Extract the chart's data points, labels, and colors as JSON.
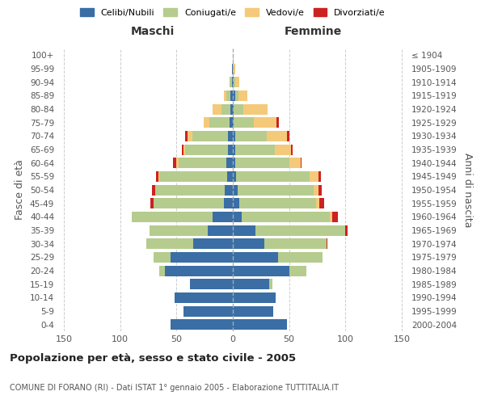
{
  "age_groups": [
    "0-4",
    "5-9",
    "10-14",
    "15-19",
    "20-24",
    "25-29",
    "30-34",
    "35-39",
    "40-44",
    "45-49",
    "50-54",
    "55-59",
    "60-64",
    "65-69",
    "70-74",
    "75-79",
    "80-84",
    "85-89",
    "90-94",
    "95-99",
    "100+"
  ],
  "birth_years": [
    "2000-2004",
    "1995-1999",
    "1990-1994",
    "1985-1989",
    "1980-1984",
    "1975-1979",
    "1970-1974",
    "1965-1969",
    "1960-1964",
    "1955-1959",
    "1950-1954",
    "1945-1949",
    "1940-1944",
    "1935-1939",
    "1930-1934",
    "1925-1929",
    "1920-1924",
    "1915-1919",
    "1910-1914",
    "1905-1909",
    "≤ 1904"
  ],
  "colors": {
    "celibi": "#3a6ea5",
    "coniugati": "#b5cc8e",
    "vedovi": "#f5c97a",
    "divorziati": "#cc2222"
  },
  "maschi": {
    "celibi": [
      55,
      44,
      52,
      38,
      60,
      55,
      35,
      22,
      18,
      8,
      7,
      5,
      6,
      4,
      4,
      3,
      2,
      2,
      1,
      1,
      0
    ],
    "coniugati": [
      0,
      0,
      0,
      0,
      5,
      15,
      42,
      52,
      72,
      62,
      62,
      60,
      42,
      38,
      32,
      18,
      8,
      4,
      2,
      0,
      0
    ],
    "vedovi": [
      0,
      0,
      0,
      0,
      0,
      0,
      0,
      0,
      0,
      0,
      0,
      1,
      2,
      2,
      4,
      5,
      8,
      2,
      0,
      0,
      0
    ],
    "divorziati": [
      0,
      0,
      0,
      0,
      0,
      0,
      0,
      0,
      0,
      3,
      3,
      2,
      3,
      1,
      2,
      0,
      0,
      0,
      0,
      0,
      0
    ]
  },
  "femmine": {
    "celibi": [
      48,
      36,
      38,
      32,
      50,
      40,
      28,
      20,
      8,
      6,
      4,
      3,
      2,
      2,
      2,
      1,
      1,
      2,
      1,
      0,
      0
    ],
    "coniugati": [
      0,
      0,
      0,
      3,
      15,
      40,
      55,
      80,
      78,
      68,
      68,
      65,
      48,
      35,
      28,
      18,
      8,
      3,
      1,
      0,
      0
    ],
    "vedovi": [
      0,
      0,
      0,
      0,
      0,
      0,
      0,
      0,
      2,
      3,
      4,
      8,
      10,
      15,
      18,
      20,
      22,
      8,
      4,
      2,
      0
    ],
    "divorziati": [
      0,
      0,
      0,
      0,
      0,
      0,
      1,
      2,
      5,
      4,
      3,
      2,
      1,
      1,
      2,
      2,
      0,
      0,
      0,
      0,
      0
    ]
  },
  "title": "Popolazione per età, sesso e stato civile - 2005",
  "subtitle": "COMUNE DI FORANO (RI) - Dati ISTAT 1° gennaio 2005 - Elaborazione TUTTITALIA.IT",
  "xlabel_maschi": "Maschi",
  "xlabel_femmine": "Femmine",
  "ylabel_left": "Fasce di età",
  "ylabel_right": "Anni di nascita",
  "xlim": 155,
  "background_color": "#ffffff",
  "grid_color": "#cccccc",
  "legend_labels": [
    "Celibi/Nubili",
    "Coniugati/e",
    "Vedovi/e",
    "Divorziati/e"
  ]
}
